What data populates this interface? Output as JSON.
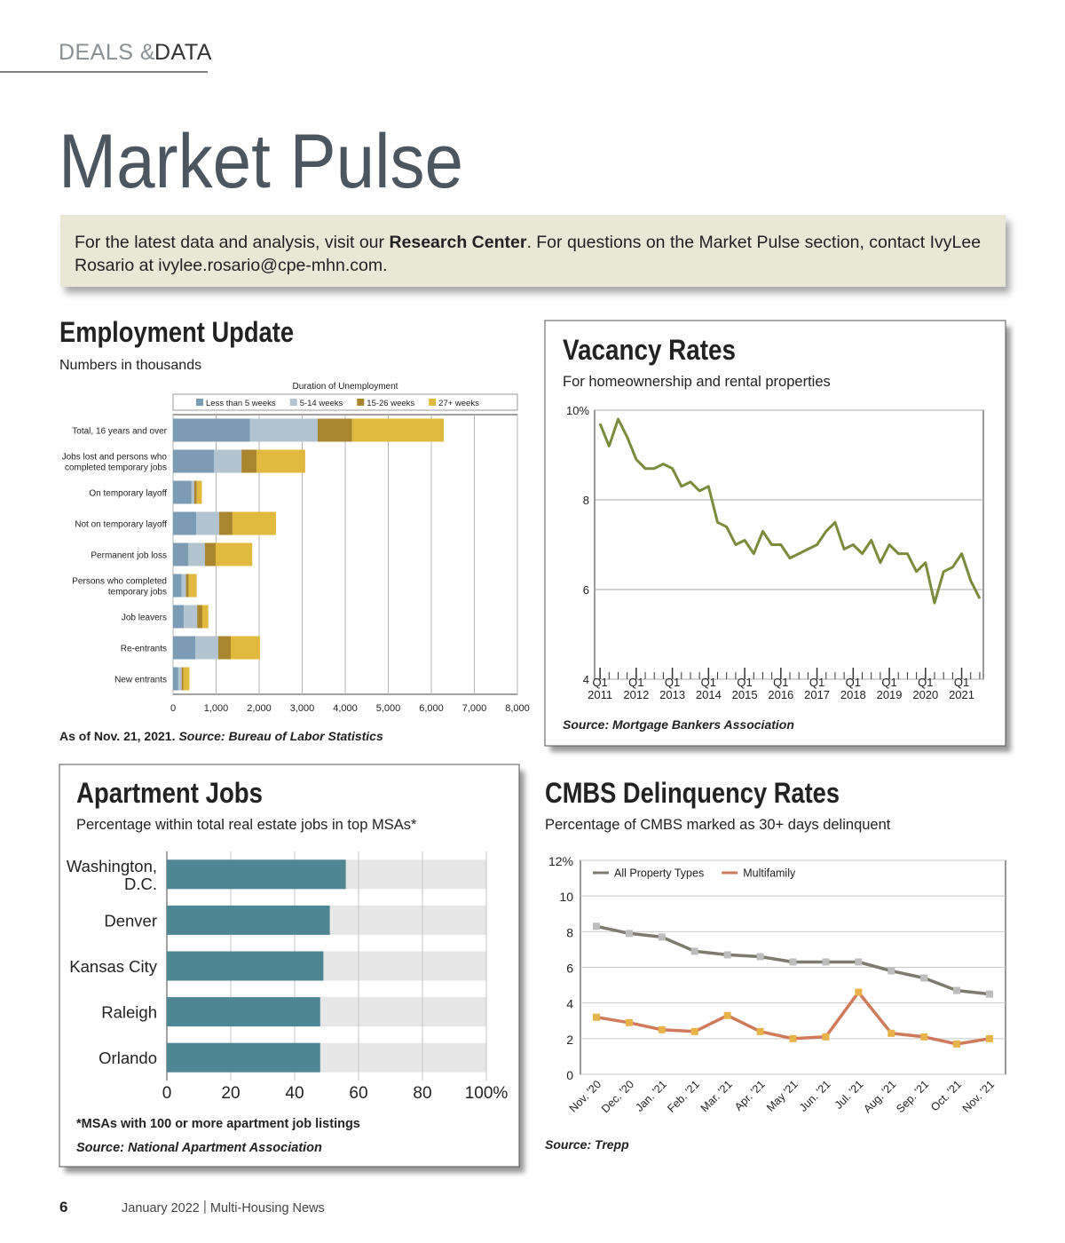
{
  "header": {
    "section_left": "DEALS &",
    "section_right": "DATA",
    "title": "Market Pulse"
  },
  "banner": {
    "text_before": "For the latest data and analysis, visit our ",
    "link": "Research Center",
    "text_after": ". For questions on the Market Pulse section, contact IvyLee Rosario at ivylee.rosario@cpe-mhn.com."
  },
  "chart_data": [
    {
      "type": "stacked-bar-horizontal",
      "title": "Employment Update",
      "subtitle": "Numbers in thousands",
      "legend_title": "Duration of Unemployment",
      "categories": [
        "Total, 16 years and over",
        "Jobs lost and persons who completed temporary jobs",
        "On temporary layoff",
        "Not on temporary layoff",
        "Permanent job loss",
        "Persons who completed temporary jobs",
        "Job leavers",
        "Re-entrants",
        "New entrants"
      ],
      "series": [
        {
          "name": "Less than 5 weeks",
          "color": "#7b9cb4",
          "values": [
            1790,
            950,
            430,
            540,
            350,
            200,
            250,
            520,
            120
          ]
        },
        {
          "name": "5-14 weeks",
          "color": "#b1c4cf",
          "values": [
            1570,
            640,
            60,
            530,
            390,
            100,
            310,
            530,
            80
          ]
        },
        {
          "name": "15-26 weeks",
          "color": "#a9852f",
          "values": [
            800,
            350,
            60,
            310,
            250,
            60,
            120,
            290,
            40
          ]
        },
        {
          "name": "27+ weeks",
          "color": "#e2b93f",
          "values": [
            2130,
            1130,
            120,
            1010,
            850,
            190,
            140,
            680,
            140
          ]
        }
      ],
      "xlim": [
        0,
        8000
      ],
      "xticks": [
        0,
        {
          "value": 1000,
          "label": "1,000"
        },
        {
          "value": 2000,
          "label": "2,000"
        },
        {
          "value": 3000,
          "label": "3,000"
        },
        {
          "value": 4000,
          "label": "4,000"
        },
        {
          "value": 5000,
          "label": "5,000"
        },
        {
          "value": 6000,
          "label": "6,000"
        },
        {
          "value": 7000,
          "label": "7,000"
        },
        {
          "value": 8000,
          "label": "8,000"
        }
      ],
      "grid": true,
      "note": "As of Nov. 21, 2021.",
      "source": "Source: Bureau of Labor Statistics"
    },
    {
      "type": "line",
      "title": "Vacancy Rates",
      "subtitle": "For homeownership and rental properties",
      "x": [
        2011,
        2011.25,
        2011.5,
        2011.75,
        2012,
        2012.25,
        2012.5,
        2012.75,
        2013,
        2013.25,
        2013.5,
        2013.75,
        2014,
        2014.25,
        2014.5,
        2014.75,
        2015,
        2015.25,
        2015.5,
        2015.75,
        2016,
        2016.25,
        2016.5,
        2016.75,
        2017,
        2017.25,
        2017.5,
        2017.75,
        2018,
        2018.25,
        2018.5,
        2018.75,
        2019,
        2019.25,
        2019.5,
        2019.75,
        2020,
        2020.25,
        2020.5,
        2020.75,
        2021,
        2021.25,
        2021.5
      ],
      "values": [
        9.7,
        9.2,
        9.8,
        9.4,
        8.9,
        8.7,
        8.7,
        8.8,
        8.7,
        8.3,
        8.4,
        8.2,
        8.3,
        7.5,
        7.4,
        7.0,
        7.1,
        6.8,
        7.3,
        7.0,
        7.0,
        6.7,
        6.8,
        6.9,
        7.0,
        7.3,
        7.5,
        6.9,
        7.0,
        6.8,
        7.1,
        6.6,
        7.0,
        6.8,
        6.8,
        6.4,
        6.6,
        5.7,
        6.4,
        6.5,
        6.8,
        6.2,
        5.8
      ],
      "color": "#7a8b3b",
      "xlim": [
        2010.85,
        2021.6
      ],
      "xticks": [
        {
          "value": 2011,
          "label": "Q1 2011"
        },
        {
          "value": 2012,
          "label": "Q1 2012"
        },
        {
          "value": 2013,
          "label": "Q1 2013"
        },
        {
          "value": 2014,
          "label": "Q1 2014"
        },
        {
          "value": 2015,
          "label": "Q1 2015"
        },
        {
          "value": 2016,
          "label": "Q1 2016"
        },
        {
          "value": 2017,
          "label": "Q1 2017"
        },
        {
          "value": 2018,
          "label": "Q1 2018"
        },
        {
          "value": 2019,
          "label": "Q1 2019"
        },
        {
          "value": 2020,
          "label": "Q1 2020"
        },
        {
          "value": 2021,
          "label": "Q1 2021"
        }
      ],
      "ylim": [
        4,
        10
      ],
      "yticks": [
        4,
        6,
        8,
        {
          "value": 10,
          "label": "10%"
        }
      ],
      "grid": true,
      "source": "Source: Mortgage Bankers Association"
    },
    {
      "type": "bar-horizontal",
      "title": "Apartment Jobs",
      "subtitle": "Percentage within total real estate jobs in top MSAs*",
      "categories": [
        "Washington, D.C.",
        "Denver",
        "Kansas City",
        "Raleigh",
        "Orlando"
      ],
      "values": [
        56,
        51,
        49,
        48,
        48
      ],
      "color": "#4f8694",
      "xlim": [
        0,
        100
      ],
      "xticks": [
        0,
        20,
        40,
        60,
        80,
        {
          "value": 100,
          "label": "100%"
        }
      ],
      "grid": true,
      "note": "*MSAs with 100 or more apartment job listings",
      "source": "Source: National Apartment Association"
    },
    {
      "type": "line",
      "title": "CMBS Delinquency Rates",
      "subtitle": "Percentage of CMBS marked as 30+ days delinquent",
      "categories": [
        "Nov. '20",
        "Dec. '20",
        "Jan. '21",
        "Feb. '21",
        "Mar. '21",
        "Apr. '21",
        "May '21",
        "Jun. '21",
        "Jul. '21",
        "Aug. '21",
        "Sep. '21",
        "Oct. '21",
        "Nov. '21"
      ],
      "series": [
        {
          "name": "All Property Types",
          "color": "#7d7b6f",
          "marker_color": "#bdbdbd",
          "values": [
            8.3,
            7.9,
            7.7,
            6.9,
            6.7,
            6.6,
            6.3,
            6.3,
            6.3,
            5.8,
            5.4,
            4.7,
            4.5
          ]
        },
        {
          "name": "Multifamily",
          "color": "#cf7b5b",
          "marker_color": "#e8b24b",
          "values": [
            3.2,
            2.9,
            2.5,
            2.4,
            3.3,
            2.4,
            2.0,
            2.1,
            4.6,
            2.3,
            2.1,
            1.7,
            2.0
          ]
        }
      ],
      "ylim": [
        0,
        12
      ],
      "yticks": [
        0,
        2,
        4,
        6,
        8,
        10,
        {
          "value": 12,
          "label": "12%"
        }
      ],
      "grid": true,
      "legend": "upper left",
      "source": "Source: Trepp"
    }
  ],
  "footer": {
    "page": "6",
    "issue": "January 2022",
    "publication": "Multi-Housing News"
  }
}
